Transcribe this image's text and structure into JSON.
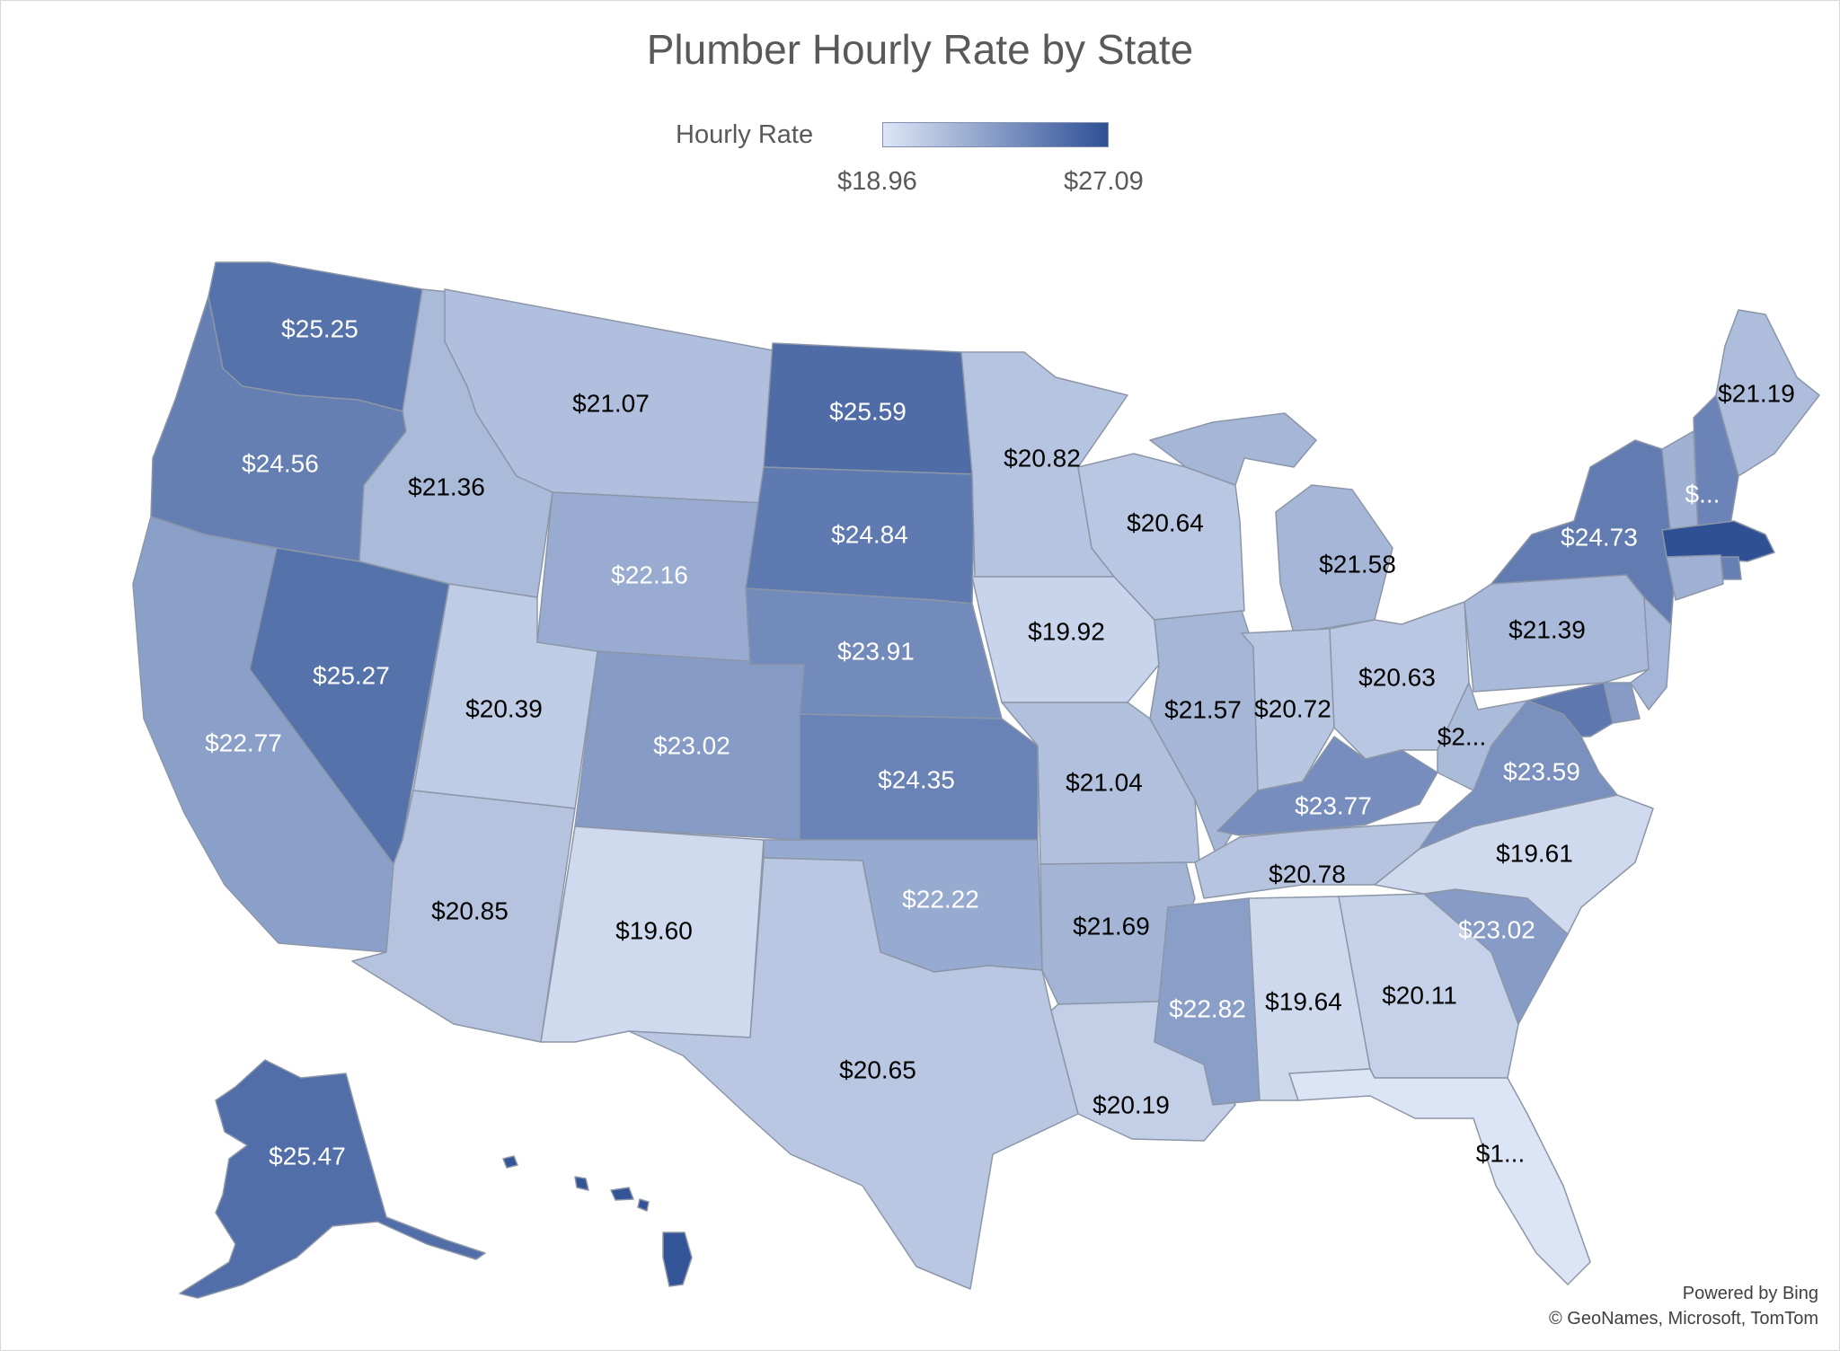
{
  "title": "Plumber Hourly Rate by State",
  "legend": {
    "label": "Hourly Rate",
    "min_label": "$18.96",
    "max_label": "$27.09",
    "min_value": 18.96,
    "max_value": 27.09,
    "min_color": "#dde6f6",
    "max_color": "#2f5095"
  },
  "credits": {
    "line1": "Powered by Bing",
    "line2": "© GeoNames, Microsoft, TomTom"
  },
  "colors": {
    "border": "#8c96a8",
    "light_text": "#ffffff",
    "dark_text": "#000000"
  },
  "chart_data": {
    "type": "choropleth",
    "title": "Plumber Hourly Rate by State",
    "legend_title": "Hourly Rate",
    "range": [
      18.96,
      27.09
    ],
    "states": [
      {
        "state": "WA",
        "label": "$25.25",
        "value": 25.25
      },
      {
        "state": "OR",
        "label": "$24.56",
        "value": 24.56
      },
      {
        "state": "CA",
        "label": "$22.77",
        "value": 22.77
      },
      {
        "state": "NV",
        "label": "$25.27",
        "value": 25.27
      },
      {
        "state": "ID",
        "label": "$21.36",
        "value": 21.36
      },
      {
        "state": "MT",
        "label": "$21.07",
        "value": 21.07
      },
      {
        "state": "WY",
        "label": "$22.16",
        "value": 22.16
      },
      {
        "state": "UT",
        "label": "$20.39",
        "value": 20.39
      },
      {
        "state": "AZ",
        "label": "$20.85",
        "value": 20.85
      },
      {
        "state": "CO",
        "label": "$23.02",
        "value": 23.02
      },
      {
        "state": "NM",
        "label": "$19.60",
        "value": 19.6
      },
      {
        "state": "ND",
        "label": "$25.59",
        "value": 25.59
      },
      {
        "state": "SD",
        "label": "$24.84",
        "value": 24.84
      },
      {
        "state": "NE",
        "label": "$23.91",
        "value": 23.91
      },
      {
        "state": "KS",
        "label": "$24.35",
        "value": 24.35
      },
      {
        "state": "OK",
        "label": "$22.22",
        "value": 22.22
      },
      {
        "state": "TX",
        "label": "$20.65",
        "value": 20.65
      },
      {
        "state": "MN",
        "label": "$20.82",
        "value": 20.82
      },
      {
        "state": "IA",
        "label": "$19.92",
        "value": 19.92
      },
      {
        "state": "MO",
        "label": "$21.04",
        "value": 21.04
      },
      {
        "state": "AR",
        "label": "$21.69",
        "value": 21.69
      },
      {
        "state": "LA",
        "label": "$20.19",
        "value": 20.19
      },
      {
        "state": "WI",
        "label": "$20.64",
        "value": 20.64
      },
      {
        "state": "IL",
        "label": "$21.57",
        "value": 21.57
      },
      {
        "state": "MI",
        "label": "$21.58",
        "value": 21.58
      },
      {
        "state": "IN",
        "label": "$20.72",
        "value": 20.72
      },
      {
        "state": "OH",
        "label": "$20.63",
        "value": 20.63
      },
      {
        "state": "KY",
        "label": "$23.77",
        "value": 23.77
      },
      {
        "state": "TN",
        "label": "$20.78",
        "value": 20.78
      },
      {
        "state": "MS",
        "label": "$22.82",
        "value": 22.82
      },
      {
        "state": "AL",
        "label": "$19.64",
        "value": 19.64
      },
      {
        "state": "GA",
        "label": "$20.11",
        "value": 20.11
      },
      {
        "state": "FL",
        "label": "$1...",
        "value": 19.0
      },
      {
        "state": "SC",
        "label": "$23.02",
        "value": 23.02
      },
      {
        "state": "NC",
        "label": "$19.61",
        "value": 19.61
      },
      {
        "state": "VA",
        "label": "$23.59",
        "value": 23.59
      },
      {
        "state": "WV",
        "label": "$2...",
        "value": 21.3
      },
      {
        "state": "PA",
        "label": "$21.39",
        "value": 21.39
      },
      {
        "state": "NY",
        "label": "$24.73",
        "value": 24.73
      },
      {
        "state": "ME",
        "label": "$21.19",
        "value": 21.19
      },
      {
        "state": "NH",
        "label": "$...",
        "value": 24.3
      },
      {
        "state": "VT",
        "label": "",
        "value": 21.8
      },
      {
        "state": "MA",
        "label": "",
        "value": 27.09
      },
      {
        "state": "RI",
        "label": "",
        "value": 24.5
      },
      {
        "state": "CT",
        "label": "",
        "value": 21.9
      },
      {
        "state": "NJ",
        "label": "",
        "value": 21.6
      },
      {
        "state": "DE",
        "label": "",
        "value": 23.0
      },
      {
        "state": "MD",
        "label": "",
        "value": 24.9
      },
      {
        "state": "AK",
        "label": "$25.47",
        "value": 25.47
      },
      {
        "state": "HI",
        "label": "",
        "value": 26.9
      }
    ]
  }
}
